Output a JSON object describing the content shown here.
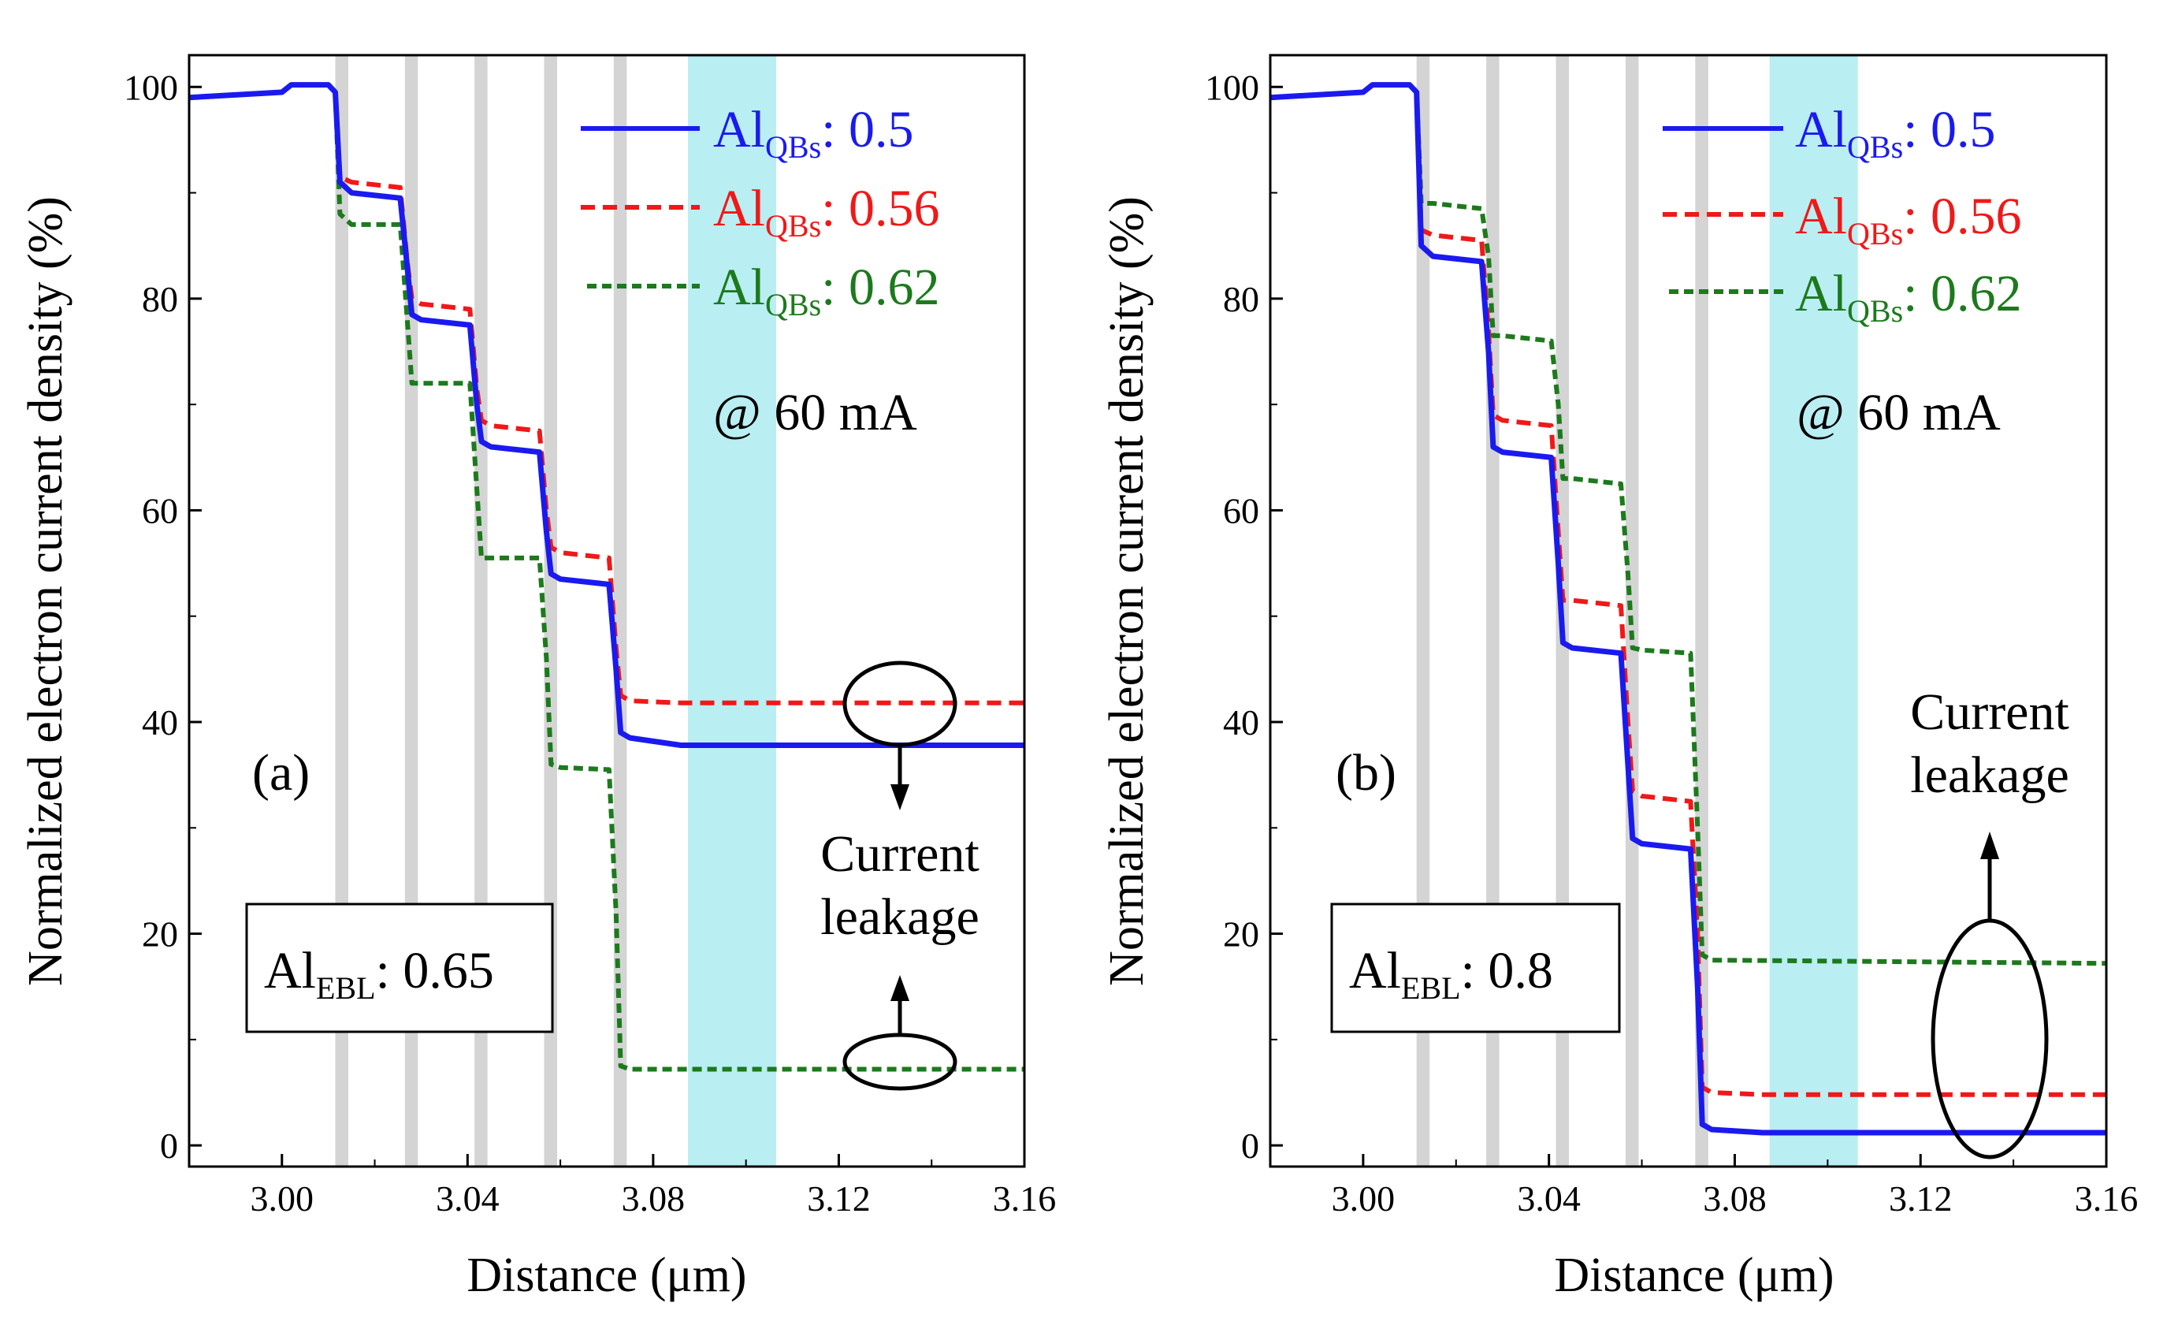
{
  "chart_data": [
    {
      "type": "line",
      "panel_label": "(a)",
      "xlabel": "Distance (μm)",
      "ylabel": "Normalized electron current density (%)",
      "xlim": [
        2.98,
        3.16
      ],
      "ylim": [
        -2,
        103
      ],
      "xticks": [
        3.0,
        3.04,
        3.08,
        3.12,
        3.16
      ],
      "xtick_labels": [
        "3.00",
        "3.04",
        "3.08",
        "3.12",
        "3.16"
      ],
      "yticks": [
        0,
        20,
        40,
        60,
        80,
        100
      ],
      "ytick_labels": [
        "0",
        "20",
        "40",
        "60",
        "80",
        "100"
      ],
      "condition": "@ 60 mA",
      "ebl": {
        "prefix": "Al",
        "sub": "EBL",
        "value": ": 0.65"
      },
      "annotation": [
        "Current",
        "leakage"
      ],
      "barrier_bands": [
        {
          "x0": 3.0115,
          "x1": 3.0143
        },
        {
          "x0": 3.0265,
          "x1": 3.0293
        },
        {
          "x0": 3.0415,
          "x1": 3.0443
        },
        {
          "x0": 3.0565,
          "x1": 3.0593
        },
        {
          "x0": 3.0715,
          "x1": 3.0743
        }
      ],
      "ebl_band": {
        "x0": 3.0875,
        "x1": 3.1065
      },
      "colors": {
        "barrier": "#d4d4d4",
        "ebl": "#b9eef2"
      },
      "series": [
        {
          "name": "0.5",
          "legend_prefix": "Al",
          "legend_sub": "QBs",
          "legend_value": ": 0.5",
          "color": "#1a1af0",
          "dash": "solid",
          "x": [
            2.98,
            3.0,
            3.002,
            3.01,
            3.0115,
            3.0125,
            3.015,
            3.0255,
            3.027,
            3.028,
            3.03,
            3.0405,
            3.042,
            3.043,
            3.045,
            3.0555,
            3.057,
            3.058,
            3.06,
            3.0705,
            3.072,
            3.073,
            3.075,
            3.086,
            3.16
          ],
          "y": [
            99,
            99.5,
            100.2,
            100.2,
            99.5,
            91,
            90,
            89.5,
            83,
            78.5,
            78,
            77.5,
            70,
            66.5,
            66,
            65.5,
            58,
            54,
            53.5,
            53,
            45,
            39,
            38.5,
            37.8,
            37.8
          ]
        },
        {
          "name": "0.56",
          "legend_prefix": "Al",
          "legend_sub": "QBs",
          "legend_value": ": 0.56",
          "color": "#f01818",
          "dash": "dashed",
          "x": [
            2.98,
            3.0,
            3.002,
            3.01,
            3.0115,
            3.0125,
            3.015,
            3.0255,
            3.027,
            3.028,
            3.03,
            3.0405,
            3.042,
            3.043,
            3.045,
            3.0555,
            3.057,
            3.058,
            3.06,
            3.0705,
            3.072,
            3.073,
            3.075,
            3.086,
            3.16
          ],
          "y": [
            99,
            99.5,
            100.2,
            100.2,
            99.5,
            91.5,
            91,
            90.5,
            83.5,
            80,
            79.5,
            79,
            71.5,
            68.5,
            68,
            67.5,
            60,
            56.5,
            56,
            55.5,
            47,
            42.5,
            42,
            41.8,
            41.8
          ]
        },
        {
          "name": "0.62",
          "legend_prefix": "Al",
          "legend_sub": "QBs",
          "legend_value": ": 0.62",
          "color": "#1c7a1c",
          "dash": "dashed",
          "x": [
            2.98,
            3.0,
            3.002,
            3.01,
            3.0115,
            3.0125,
            3.015,
            3.0255,
            3.027,
            3.028,
            3.03,
            3.0405,
            3.042,
            3.043,
            3.045,
            3.0555,
            3.057,
            3.058,
            3.06,
            3.0705,
            3.072,
            3.073,
            3.075,
            3.16
          ],
          "y": [
            99,
            99.5,
            100.2,
            100.2,
            99.5,
            88,
            87,
            87,
            78,
            72,
            72,
            72,
            62,
            55.5,
            55.5,
            55.5,
            46,
            36,
            35.7,
            35.5,
            22,
            7.5,
            7.2,
            7.2
          ]
        }
      ]
    },
    {
      "type": "line",
      "panel_label": "(b)",
      "xlabel": "Distance (μm)",
      "ylabel": "Normalized electron current density (%)",
      "xlim": [
        2.98,
        3.16
      ],
      "ylim": [
        -2,
        103
      ],
      "xticks": [
        3.0,
        3.04,
        3.08,
        3.12,
        3.16
      ],
      "xtick_labels": [
        "3.00",
        "3.04",
        "3.08",
        "3.12",
        "3.16"
      ],
      "yticks": [
        0,
        20,
        40,
        60,
        80,
        100
      ],
      "ytick_labels": [
        "0",
        "20",
        "40",
        "60",
        "80",
        "100"
      ],
      "condition": "@ 60 mA",
      "ebl": {
        "prefix": "Al",
        "sub": "EBL",
        "value": ": 0.8"
      },
      "annotation": [
        "Current",
        "leakage"
      ],
      "barrier_bands": [
        {
          "x0": 3.0115,
          "x1": 3.0143
        },
        {
          "x0": 3.0265,
          "x1": 3.0293
        },
        {
          "x0": 3.0415,
          "x1": 3.0443
        },
        {
          "x0": 3.0565,
          "x1": 3.0593
        },
        {
          "x0": 3.0715,
          "x1": 3.0743
        }
      ],
      "ebl_band": {
        "x0": 3.0875,
        "x1": 3.1065
      },
      "colors": {
        "barrier": "#d4d4d4",
        "ebl": "#b9eef2"
      },
      "series": [
        {
          "name": "0.5",
          "legend_prefix": "Al",
          "legend_sub": "QBs",
          "legend_value": ": 0.5",
          "color": "#1a1af0",
          "dash": "solid",
          "x": [
            2.98,
            3.0,
            3.002,
            3.01,
            3.0115,
            3.0125,
            3.015,
            3.0255,
            3.027,
            3.028,
            3.03,
            3.0405,
            3.042,
            3.043,
            3.045,
            3.0555,
            3.057,
            3.058,
            3.06,
            3.0705,
            3.072,
            3.073,
            3.075,
            3.086,
            3.16
          ],
          "y": [
            99,
            99.5,
            100.2,
            100.2,
            99.5,
            85,
            84,
            83.5,
            75,
            66,
            65.5,
            65,
            55,
            47.5,
            47,
            46.5,
            36,
            29,
            28.5,
            28,
            15,
            2,
            1.5,
            1.2,
            1.2
          ]
        },
        {
          "name": "0.56",
          "legend_prefix": "Al",
          "legend_sub": "QBs",
          "legend_value": ": 0.56",
          "color": "#f01818",
          "dash": "dashed",
          "x": [
            2.98,
            3.0,
            3.002,
            3.01,
            3.0115,
            3.0125,
            3.015,
            3.0255,
            3.027,
            3.028,
            3.03,
            3.0405,
            3.042,
            3.043,
            3.045,
            3.0555,
            3.057,
            3.058,
            3.06,
            3.0705,
            3.072,
            3.073,
            3.075,
            3.086,
            3.16
          ],
          "y": [
            99,
            99.5,
            100.2,
            100.2,
            99.5,
            86.5,
            86,
            85.5,
            77,
            69,
            68.5,
            68,
            58,
            51.5,
            51.5,
            51,
            40,
            33.5,
            33,
            32.5,
            20,
            5.5,
            5,
            4.8,
            4.8
          ]
        },
        {
          "name": "0.62",
          "legend_prefix": "Al",
          "legend_sub": "QBs",
          "legend_value": ": 0.62",
          "color": "#1c7a1c",
          "dash": "dashed",
          "x": [
            2.98,
            3.0,
            3.002,
            3.01,
            3.0115,
            3.0125,
            3.015,
            3.0255,
            3.027,
            3.028,
            3.03,
            3.0405,
            3.042,
            3.043,
            3.045,
            3.0555,
            3.057,
            3.058,
            3.06,
            3.0705,
            3.072,
            3.073,
            3.075,
            3.16
          ],
          "y": [
            99,
            99.5,
            100.2,
            100.2,
            99.5,
            89,
            89,
            88.5,
            84,
            76.5,
            76.5,
            76,
            70,
            63,
            63,
            62.5,
            54,
            47,
            46.8,
            46.5,
            30,
            18,
            17.5,
            17.2
          ]
        }
      ]
    }
  ]
}
